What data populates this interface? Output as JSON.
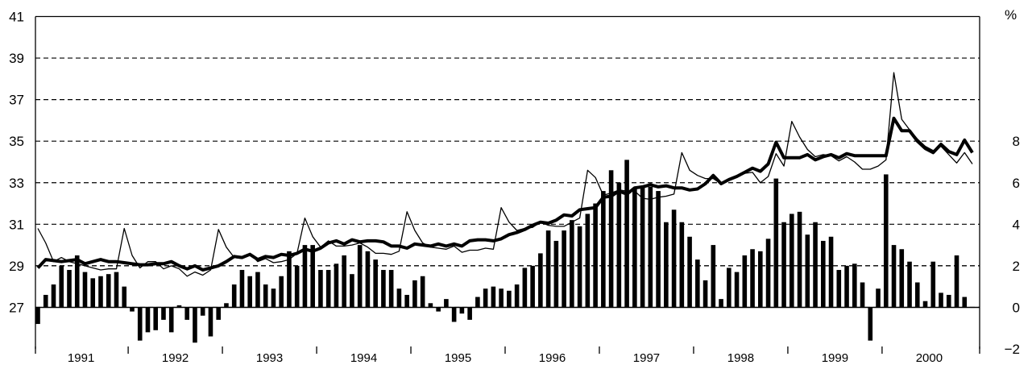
{
  "chart_data": {
    "type": "bar+line",
    "left_axis": {
      "ylim": [
        25,
        41
      ],
      "ticks": [
        "41",
        "39",
        "37",
        "35",
        "33",
        "31",
        "29",
        "27"
      ]
    },
    "right_axis": {
      "unit": "%",
      "ylim": [
        -2,
        14
      ],
      "ticks": [
        "8",
        "6",
        "4",
        "2",
        "0",
        "−2"
      ]
    },
    "years": [
      "1991",
      "1992",
      "1993",
      "1994",
      "1995",
      "1996",
      "1997",
      "1998",
      "1999",
      "2000"
    ],
    "grid": "dashed horizontal at 27, 29, 31, 33, 35, 37, 39 (left axis) and at 2 % (right axis)",
    "x_start": "1991-01",
    "frequency": "monthly",
    "series": [
      {
        "axis": "left",
        "style": "thick line",
        "values": [
          28.9,
          29.3,
          29.25,
          29.2,
          29.25,
          29.3,
          29.1,
          29.2,
          29.3,
          29.2,
          29.2,
          29.15,
          29.1,
          29.05,
          29.05,
          29.1,
          29.1,
          29.2,
          29.0,
          28.85,
          29.0,
          28.8,
          28.9,
          29.0,
          29.2,
          29.45,
          29.4,
          29.55,
          29.3,
          29.45,
          29.4,
          29.55,
          29.5,
          29.6,
          29.8,
          29.7,
          29.85,
          30.1,
          30.2,
          30.05,
          30.25,
          30.15,
          30.2,
          30.2,
          30.15,
          29.95,
          29.95,
          29.85,
          30.05,
          30.0,
          29.95,
          30.05,
          29.95,
          30.05,
          29.95,
          30.2,
          30.25,
          30.25,
          30.2,
          30.3,
          30.5,
          30.6,
          30.75,
          30.95,
          31.1,
          31.05,
          31.2,
          31.45,
          31.4,
          31.7,
          31.75,
          31.8,
          32.3,
          32.35,
          32.6,
          32.45,
          32.75,
          32.8,
          32.9,
          32.8,
          32.85,
          32.75,
          32.75,
          32.65,
          32.7,
          32.95,
          33.35,
          32.95,
          33.15,
          33.3,
          33.5,
          33.7,
          33.55,
          33.9,
          34.95,
          34.2,
          34.2,
          34.2,
          34.35,
          34.1,
          34.25,
          34.35,
          34.2,
          34.4,
          34.3,
          34.3,
          34.3,
          34.3,
          34.3,
          36.1,
          35.5,
          35.5,
          35.0,
          34.65,
          34.45,
          34.85,
          34.5,
          34.35,
          35.05,
          34.45
        ]
      },
      {
        "axis": "left",
        "style": "thin line",
        "values": [
          30.8,
          30.1,
          29.2,
          29.4,
          29.2,
          29.1,
          29.0,
          28.9,
          28.8,
          28.85,
          28.85,
          30.8,
          29.5,
          28.9,
          29.2,
          29.2,
          28.85,
          29.0,
          28.85,
          28.5,
          28.7,
          28.55,
          28.8,
          30.75,
          29.9,
          29.4,
          29.35,
          29.6,
          29.2,
          29.35,
          29.15,
          29.2,
          29.3,
          29.6,
          31.3,
          30.4,
          29.9,
          30.2,
          29.95,
          29.95,
          30.0,
          30.1,
          29.9,
          29.6,
          29.6,
          29.55,
          29.7,
          31.6,
          30.7,
          30.1,
          29.9,
          29.85,
          29.8,
          29.95,
          29.65,
          29.75,
          29.75,
          29.85,
          29.8,
          31.8,
          31.1,
          30.7,
          30.8,
          30.85,
          31.1,
          30.95,
          30.9,
          30.9,
          31.1,
          31.3,
          33.6,
          33.25,
          32.4,
          32.5,
          32.65,
          32.6,
          32.6,
          32.25,
          32.2,
          32.3,
          32.35,
          32.45,
          34.45,
          33.6,
          33.35,
          33.2,
          33.2,
          32.95,
          33.15,
          33.3,
          33.45,
          33.5,
          33.0,
          33.3,
          34.4,
          33.8,
          35.95,
          35.2,
          34.6,
          34.25,
          34.35,
          34.3,
          34.05,
          34.25,
          34.0,
          33.65,
          33.65,
          33.8,
          34.1,
          38.3,
          36.05,
          35.55,
          35.1,
          34.75,
          34.55,
          34.75,
          34.35,
          33.95,
          34.45,
          33.9
        ]
      },
      {
        "axis": "right",
        "style": "bars",
        "values": [
          -0.8,
          0.6,
          1.1,
          2.0,
          1.8,
          2.5,
          1.7,
          1.4,
          1.5,
          1.6,
          1.7,
          1.0,
          -0.2,
          -1.6,
          -1.2,
          -1.1,
          -0.6,
          -1.2,
          0.1,
          -0.6,
          -1.7,
          -0.4,
          -1.4,
          -0.6,
          0.2,
          1.1,
          1.8,
          1.5,
          1.7,
          1.1,
          0.9,
          1.5,
          2.7,
          2.0,
          3.0,
          3.0,
          1.8,
          1.8,
          2.1,
          2.5,
          1.6,
          3.0,
          2.7,
          2.3,
          1.8,
          1.8,
          0.9,
          0.6,
          1.3,
          1.5,
          0.2,
          -0.2,
          0.4,
          -0.7,
          -0.3,
          -0.6,
          0.5,
          0.9,
          1.0,
          0.9,
          0.8,
          1.1,
          1.9,
          2.0,
          2.6,
          3.7,
          3.2,
          3.7,
          4.2,
          3.9,
          4.5,
          5.0,
          5.6,
          6.6,
          6.0,
          7.1,
          5.7,
          5.8,
          5.8,
          5.6,
          4.1,
          4.7,
          4.1,
          3.4,
          2.3,
          1.3,
          3.0,
          0.4,
          1.9,
          1.7,
          2.5,
          2.8,
          2.7,
          3.3,
          6.2,
          4.1,
          4.5,
          4.6,
          3.5,
          4.1,
          3.2,
          3.4,
          1.8,
          2.0,
          2.1,
          1.2,
          -1.6,
          0.9,
          6.4,
          3.0,
          2.8,
          2.2,
          1.2,
          0.3,
          2.2,
          0.7,
          0.6,
          2.5,
          0.5,
          0.0
        ]
      }
    ]
  }
}
